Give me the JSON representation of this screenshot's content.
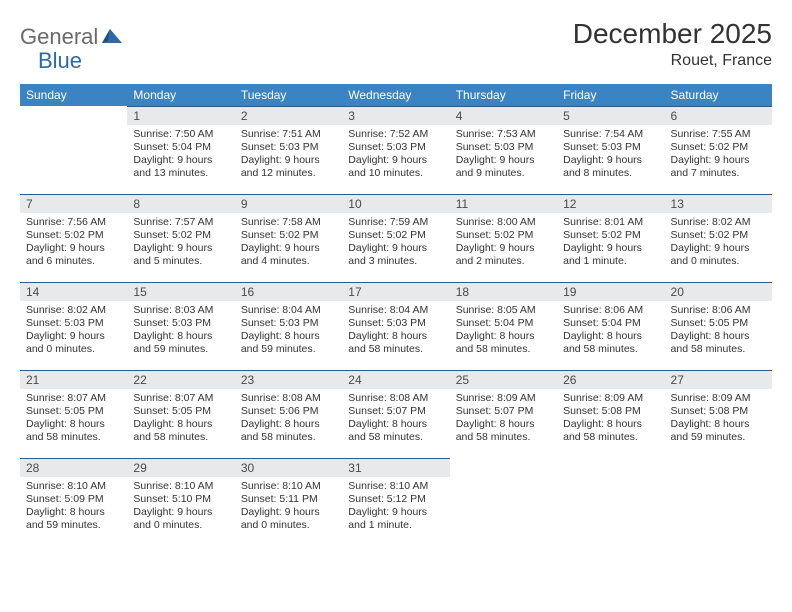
{
  "colors": {
    "header_bg": "#3b84c4",
    "header_text": "#ffffff",
    "daynum_bg": "#e7e9eb",
    "daynum_text": "#4a4a4a",
    "rule": "#2d5a88",
    "body_text": "#333333",
    "logo_gray": "#6a6a6a",
    "logo_blue": "#2f6aa8"
  },
  "logo": {
    "part1": "General",
    "part2": "Blue"
  },
  "title": "December 2025",
  "location": "Rouet, France",
  "weekdays": [
    "Sunday",
    "Monday",
    "Tuesday",
    "Wednesday",
    "Thursday",
    "Friday",
    "Saturday"
  ],
  "weeks": [
    [
      null,
      {
        "n": "1",
        "sunrise": "7:50 AM",
        "sunset": "5:04 PM",
        "daylight": "9 hours and 13 minutes."
      },
      {
        "n": "2",
        "sunrise": "7:51 AM",
        "sunset": "5:03 PM",
        "daylight": "9 hours and 12 minutes."
      },
      {
        "n": "3",
        "sunrise": "7:52 AM",
        "sunset": "5:03 PM",
        "daylight": "9 hours and 10 minutes."
      },
      {
        "n": "4",
        "sunrise": "7:53 AM",
        "sunset": "5:03 PM",
        "daylight": "9 hours and 9 minutes."
      },
      {
        "n": "5",
        "sunrise": "7:54 AM",
        "sunset": "5:03 PM",
        "daylight": "9 hours and 8 minutes."
      },
      {
        "n": "6",
        "sunrise": "7:55 AM",
        "sunset": "5:02 PM",
        "daylight": "9 hours and 7 minutes."
      }
    ],
    [
      {
        "n": "7",
        "sunrise": "7:56 AM",
        "sunset": "5:02 PM",
        "daylight": "9 hours and 6 minutes."
      },
      {
        "n": "8",
        "sunrise": "7:57 AM",
        "sunset": "5:02 PM",
        "daylight": "9 hours and 5 minutes."
      },
      {
        "n": "9",
        "sunrise": "7:58 AM",
        "sunset": "5:02 PM",
        "daylight": "9 hours and 4 minutes."
      },
      {
        "n": "10",
        "sunrise": "7:59 AM",
        "sunset": "5:02 PM",
        "daylight": "9 hours and 3 minutes."
      },
      {
        "n": "11",
        "sunrise": "8:00 AM",
        "sunset": "5:02 PM",
        "daylight": "9 hours and 2 minutes."
      },
      {
        "n": "12",
        "sunrise": "8:01 AM",
        "sunset": "5:02 PM",
        "daylight": "9 hours and 1 minute."
      },
      {
        "n": "13",
        "sunrise": "8:02 AM",
        "sunset": "5:02 PM",
        "daylight": "9 hours and 0 minutes."
      }
    ],
    [
      {
        "n": "14",
        "sunrise": "8:02 AM",
        "sunset": "5:03 PM",
        "daylight": "9 hours and 0 minutes."
      },
      {
        "n": "15",
        "sunrise": "8:03 AM",
        "sunset": "5:03 PM",
        "daylight": "8 hours and 59 minutes."
      },
      {
        "n": "16",
        "sunrise": "8:04 AM",
        "sunset": "5:03 PM",
        "daylight": "8 hours and 59 minutes."
      },
      {
        "n": "17",
        "sunrise": "8:04 AM",
        "sunset": "5:03 PM",
        "daylight": "8 hours and 58 minutes."
      },
      {
        "n": "18",
        "sunrise": "8:05 AM",
        "sunset": "5:04 PM",
        "daylight": "8 hours and 58 minutes."
      },
      {
        "n": "19",
        "sunrise": "8:06 AM",
        "sunset": "5:04 PM",
        "daylight": "8 hours and 58 minutes."
      },
      {
        "n": "20",
        "sunrise": "8:06 AM",
        "sunset": "5:05 PM",
        "daylight": "8 hours and 58 minutes."
      }
    ],
    [
      {
        "n": "21",
        "sunrise": "8:07 AM",
        "sunset": "5:05 PM",
        "daylight": "8 hours and 58 minutes."
      },
      {
        "n": "22",
        "sunrise": "8:07 AM",
        "sunset": "5:05 PM",
        "daylight": "8 hours and 58 minutes."
      },
      {
        "n": "23",
        "sunrise": "8:08 AM",
        "sunset": "5:06 PM",
        "daylight": "8 hours and 58 minutes."
      },
      {
        "n": "24",
        "sunrise": "8:08 AM",
        "sunset": "5:07 PM",
        "daylight": "8 hours and 58 minutes."
      },
      {
        "n": "25",
        "sunrise": "8:09 AM",
        "sunset": "5:07 PM",
        "daylight": "8 hours and 58 minutes."
      },
      {
        "n": "26",
        "sunrise": "8:09 AM",
        "sunset": "5:08 PM",
        "daylight": "8 hours and 58 minutes."
      },
      {
        "n": "27",
        "sunrise": "8:09 AM",
        "sunset": "5:08 PM",
        "daylight": "8 hours and 59 minutes."
      }
    ],
    [
      {
        "n": "28",
        "sunrise": "8:10 AM",
        "sunset": "5:09 PM",
        "daylight": "8 hours and 59 minutes."
      },
      {
        "n": "29",
        "sunrise": "8:10 AM",
        "sunset": "5:10 PM",
        "daylight": "9 hours and 0 minutes."
      },
      {
        "n": "30",
        "sunrise": "8:10 AM",
        "sunset": "5:11 PM",
        "daylight": "9 hours and 0 minutes."
      },
      {
        "n": "31",
        "sunrise": "8:10 AM",
        "sunset": "5:12 PM",
        "daylight": "9 hours and 1 minute."
      },
      null,
      null,
      null
    ]
  ],
  "labels": {
    "sunrise": "Sunrise:",
    "sunset": "Sunset:",
    "daylight": "Daylight:"
  }
}
